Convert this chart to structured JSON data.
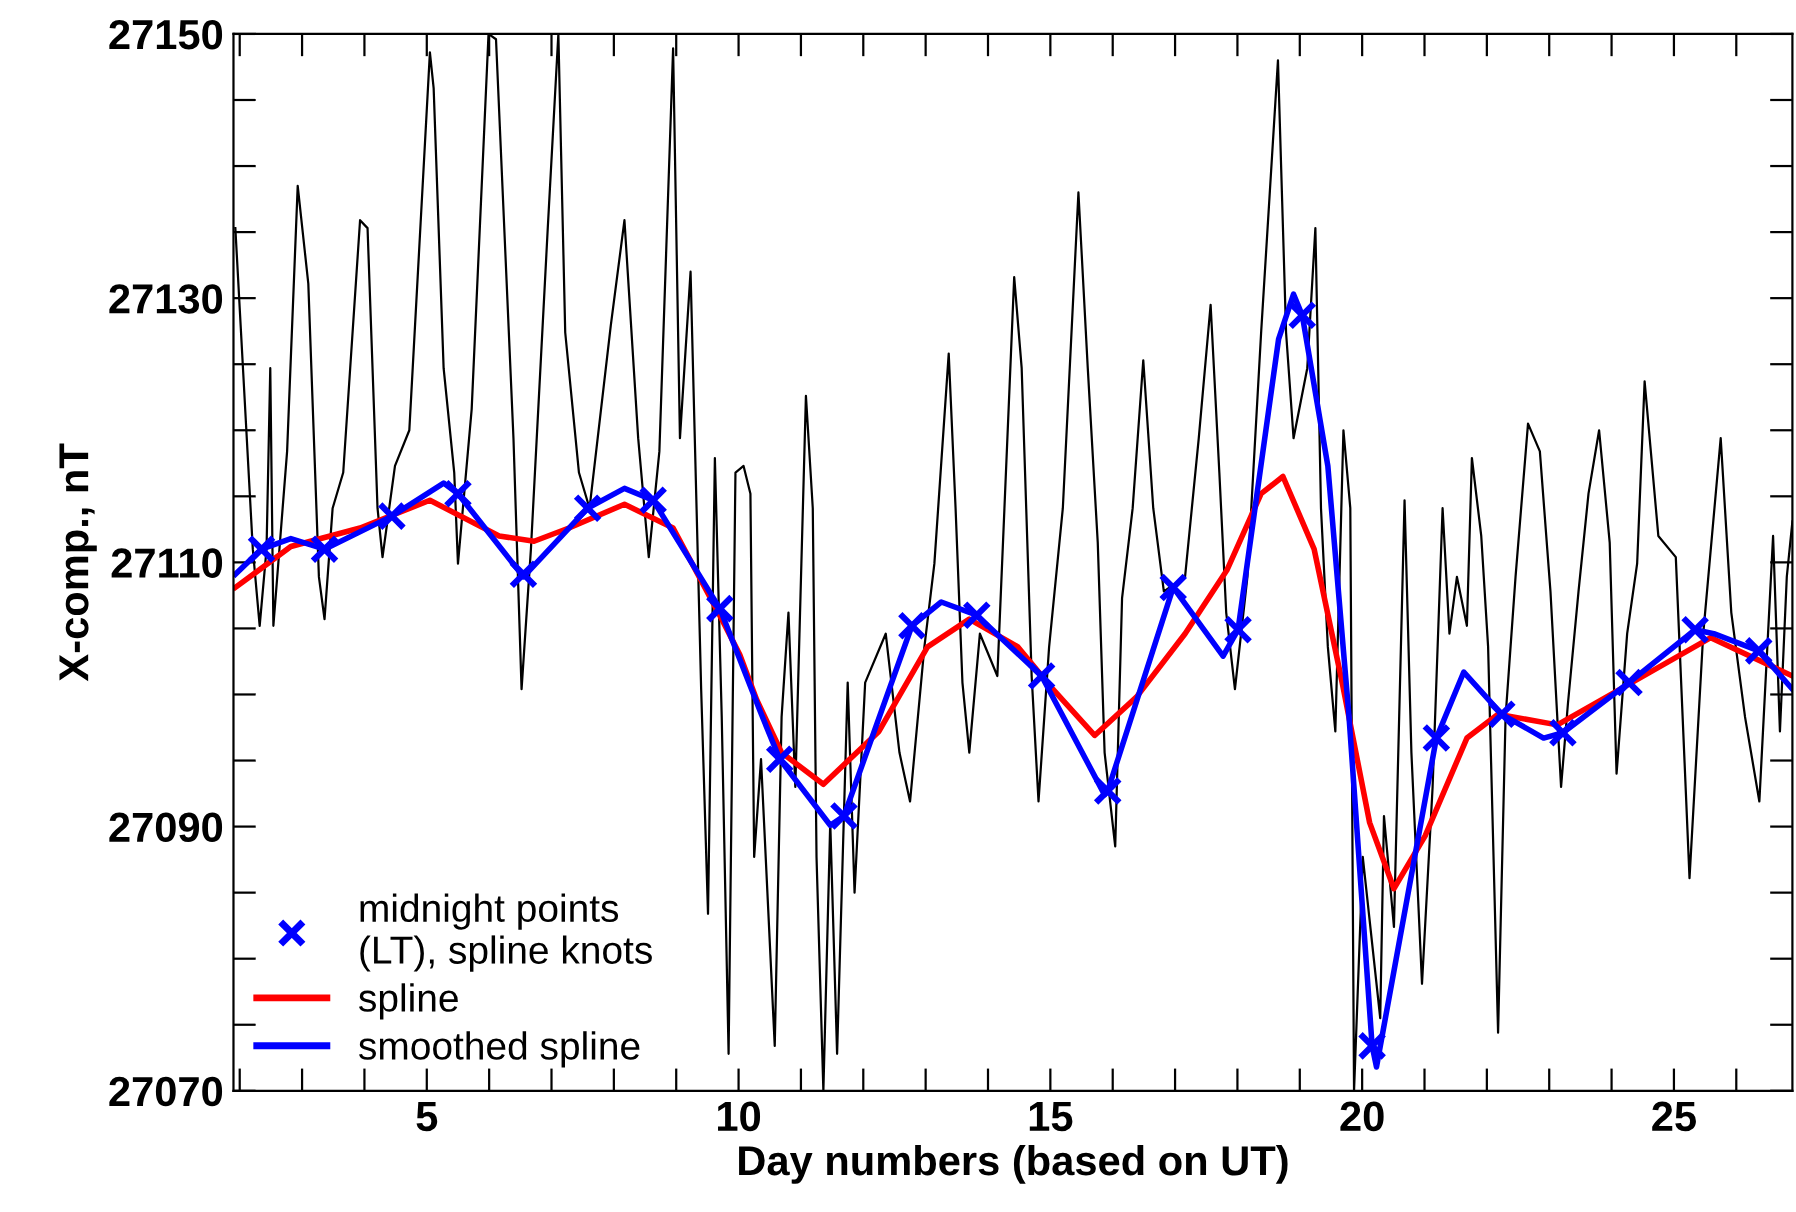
{
  "chart_data": {
    "type": "line",
    "xlabel": "Day numbers (based on UT)",
    "ylabel": "X-comp., nT",
    "xlim": [
      1.9,
      26.9
    ],
    "ylim": [
      27070,
      27150
    ],
    "xticks": [
      {
        "value": 2,
        "label": null
      },
      {
        "value": 3,
        "label": null
      },
      {
        "value": 4,
        "label": null
      },
      5,
      {
        "value": 6,
        "label": null
      },
      {
        "value": 7,
        "label": null
      },
      {
        "value": 8,
        "label": null
      },
      {
        "value": 9,
        "label": null
      },
      10,
      {
        "value": 11,
        "label": null
      },
      {
        "value": 12,
        "label": null
      },
      {
        "value": 13,
        "label": null
      },
      {
        "value": 14,
        "label": null
      },
      15,
      {
        "value": 16,
        "label": null
      },
      {
        "value": 17,
        "label": null
      },
      {
        "value": 18,
        "label": null
      },
      {
        "value": 19,
        "label": null
      },
      20,
      {
        "value": 21,
        "label": null
      },
      {
        "value": 22,
        "label": null
      },
      {
        "value": 23,
        "label": null
      },
      {
        "value": 24,
        "label": null
      },
      25,
      {
        "value": 26,
        "label": null
      }
    ],
    "yticks": [
      27070,
      {
        "value": 27075,
        "label": null
      },
      {
        "value": 27080,
        "label": null
      },
      {
        "value": 27085,
        "label": null
      },
      27090,
      {
        "value": 27095,
        "label": null
      },
      {
        "value": 27100,
        "label": null
      },
      {
        "value": 27105,
        "label": null
      },
      27110,
      {
        "value": 27115,
        "label": null
      },
      {
        "value": 27120,
        "label": null
      },
      {
        "value": 27125,
        "label": null
      },
      27130,
      {
        "value": 27135,
        "label": null
      },
      {
        "value": 27140,
        "label": null
      },
      {
        "value": 27145,
        "label": null
      },
      27150
    ],
    "grid": false,
    "legend": "bottom left",
    "line_style": "solid",
    "marker": "none",
    "series": [
      {
        "color": "#000000",
        "x": [
          1.93,
          2.21,
          2.32,
          2.43,
          2.49,
          2.54,
          2.76,
          2.93,
          3.1,
          3.27,
          3.36,
          3.49,
          3.66,
          3.93,
          4.05,
          4.21,
          4.29,
          4.49,
          4.72,
          5.05,
          5.11,
          5.27,
          5.44,
          5.5,
          5.72,
          5.99,
          6.11,
          6.39,
          6.52,
          6.67,
          6.94,
          7.11,
          7.22,
          7.44,
          7.61,
          7.95,
          8.17,
          8.39,
          8.56,
          8.73,
          8.95,
          9.06,
          9.23,
          9.4,
          9.51,
          9.62,
          9.73,
          9.84,
          9.95,
          10.08,
          10.19,
          10.25,
          10.36,
          10.58,
          10.69,
          10.8,
          10.91,
          11.08,
          11.19,
          11.25,
          11.36,
          11.47,
          11.58,
          11.75,
          11.86,
          12.03,
          12.36,
          12.58,
          12.75,
          12.98,
          13.14,
          13.37,
          13.48,
          13.59,
          13.7,
          13.87,
          14.15,
          14.42,
          14.54,
          14.7,
          14.81,
          14.98,
          15.2,
          15.45,
          15.6,
          15.76,
          15.87,
          16.04,
          16.15,
          16.32,
          16.49,
          16.65,
          16.82,
          17.16,
          17.38,
          17.57,
          17.71,
          17.82,
          17.96,
          18.16,
          18.38,
          18.65,
          18.78,
          18.9,
          19.12,
          19.25,
          19.34,
          19.45,
          19.57,
          19.7,
          19.81,
          19.87,
          20.01,
          20.29,
          20.35,
          20.51,
          20.68,
          20.79,
          20.96,
          21.13,
          21.29,
          21.4,
          21.52,
          21.68,
          21.76,
          21.91,
          22.02,
          22.18,
          22.3,
          22.46,
          22.66,
          22.85,
          23.02,
          23.19,
          23.3,
          23.47,
          23.63,
          23.8,
          23.97,
          24.08,
          24.25,
          24.41,
          24.53,
          24.75,
          25.03,
          25.25,
          25.47,
          25.75,
          25.92,
          26.14,
          26.37,
          26.59,
          26.7,
          26.81,
          26.9
        ],
        "values": [
          27135.3,
          27111.0,
          27105.2,
          27111.0,
          27124.7,
          27105.2,
          27118.4,
          27138.5,
          27131.1,
          27108.9,
          27105.7,
          27114.1,
          27116.8,
          27135.9,
          27135.3,
          27114.1,
          27110.4,
          27117.3,
          27120.0,
          27148.6,
          27145.9,
          27124.7,
          27116.8,
          27109.9,
          27121.6,
          27150,
          27149.6,
          27119.4,
          27100.4,
          27111.0,
          27135.3,
          27150,
          27127.4,
          27116.8,
          27114.1,
          27127.9,
          27135.9,
          27119.4,
          27110.4,
          27118.4,
          27148.9,
          27119.4,
          27132.0,
          27100.4,
          27083.4,
          27117.9,
          27098.3,
          27072.8,
          27116.8,
          27117.3,
          27115.2,
          27087.7,
          27095.1,
          27073.4,
          27098.3,
          27106.2,
          27093.0,
          27122.6,
          27114.1,
          27087.7,
          27070,
          27090.3,
          27072.8,
          27100.9,
          27085.0,
          27100.9,
          27104.6,
          27095.6,
          27091.9,
          27103.6,
          27109.9,
          27125.8,
          27114.1,
          27100.9,
          27095.6,
          27104.6,
          27101.4,
          27131.6,
          27124.7,
          27101.4,
          27091.9,
          27103.6,
          27114.1,
          27138.0,
          27124.7,
          27111.5,
          27095.6,
          27088.5,
          27107.3,
          27114.1,
          27125.3,
          27114.1,
          27107.8,
          27108.9,
          27119.4,
          27129.5,
          27116.8,
          27106.2,
          27100.4,
          27108.9,
          27127.4,
          27148.0,
          27127.4,
          27119.4,
          27124.7,
          27135.3,
          27114.1,
          27103.6,
          27097.2,
          27120.0,
          27114.1,
          27070,
          27087.7,
          27075.5,
          27090.8,
          27082.4,
          27114.7,
          27095.6,
          27078.1,
          27093.0,
          27114.1,
          27104.6,
          27108.9,
          27105.2,
          27117.9,
          27112.0,
          27103.6,
          27074.4,
          27098.3,
          27108.9,
          27120.5,
          27118.4,
          27107.8,
          27093.0,
          27099.3,
          27107.8,
          27115.2,
          27120.0,
          27111.5,
          27094.0,
          27104.6,
          27109.9,
          27123.7,
          27112.0,
          27110.4,
          27086.1,
          27104.6,
          27119.4,
          27106.2,
          27098.3,
          27091.9,
          27112.0,
          27097.2,
          27108.9,
          27113.1
        ]
      },
      {
        "name": "spline",
        "color": "#ff0000",
        "x": [
          1.93,
          2.82,
          3.93,
          5.05,
          6.16,
          6.72,
          7.28,
          8.17,
          8.95,
          9.73,
          10.02,
          10.29,
          10.69,
          11.36,
          12.25,
          13.03,
          13.7,
          14.48,
          15.04,
          15.71,
          16.38,
          17.16,
          17.83,
          18.38,
          18.73,
          19.23,
          19.68,
          20.12,
          20.51,
          21.01,
          21.68,
          22.18,
          23.13,
          24.14,
          25.59,
          26.9
        ],
        "values": [
          27108.1,
          27111.2,
          27112.6,
          27114.7,
          27112.0,
          27111.6,
          27112.6,
          27114.4,
          27112.6,
          27105.7,
          27103.0,
          27099.6,
          27095.6,
          27093.2,
          27097.2,
          27103.6,
          27105.7,
          27103.6,
          27100.4,
          27096.9,
          27099.8,
          27104.6,
          27109.4,
          27115.2,
          27116.5,
          27111.0,
          27100.9,
          27090.3,
          27085.3,
          27089.3,
          27096.7,
          27098.5,
          27097.7,
          27100.4,
          27104.3,
          27101.4
        ]
      },
      {
        "name": "smoothed spline",
        "color": "#0000ff",
        "x": [
          1.93,
          2.35,
          2.82,
          3.36,
          4.44,
          5.27,
          5.5,
          6.55,
          7.58,
          8.17,
          8.63,
          9.7,
          10.34,
          10.66,
          11.47,
          11.69,
          12.78,
          13.25,
          13.82,
          14.86,
          15.87,
          15.92,
          16.97,
          17.77,
          18.01,
          18.66,
          18.9,
          19.04,
          19.45,
          19.79,
          20.16,
          20.23,
          21.19,
          21.63,
          22.24,
          22.91,
          23.22,
          24.28,
          25.34,
          25.64,
          26.36,
          26.9
        ],
        "values": [
          27109.1,
          27111.0,
          27111.8,
          27111.0,
          27113.5,
          27116.0,
          27115.2,
          27108.9,
          27114.1,
          27115.6,
          27114.7,
          27106.5,
          27098.8,
          27095.1,
          27090.1,
          27090.8,
          27105.2,
          27107.0,
          27106.0,
          27101.4,
          27092.4,
          27092.7,
          27108.1,
          27102.9,
          27104.9,
          27126.9,
          27130.3,
          27128.7,
          27117.3,
          27098.3,
          27073.4,
          27071.8,
          27096.7,
          27101.7,
          27098.5,
          27096.7,
          27097.1,
          27100.9,
          27104.9,
          27104.6,
          27103.3,
          27100.4
        ]
      },
      {
        "type": "scatter",
        "name": "midnight points\n(LT), spline knots",
        "color": "#0000ff",
        "marker": "cross",
        "x": [
          2.35,
          3.36,
          4.44,
          5.5,
          6.55,
          7.58,
          8.63,
          9.7,
          10.66,
          11.69,
          12.78,
          13.82,
          14.86,
          15.92,
          16.97,
          18.01,
          19.04,
          20.16,
          21.19,
          22.24,
          23.22,
          24.28,
          25.34,
          26.36
        ],
        "values": [
          27111.0,
          27111.0,
          27113.5,
          27115.2,
          27109.1,
          27114.1,
          27114.7,
          27106.5,
          27095.1,
          27090.8,
          27105.2,
          27106.0,
          27101.4,
          27092.7,
          27108.1,
          27104.9,
          27128.7,
          27073.4,
          27096.7,
          27098.5,
          27097.1,
          27100.9,
          27104.9,
          27103.3
        ]
      }
    ]
  }
}
